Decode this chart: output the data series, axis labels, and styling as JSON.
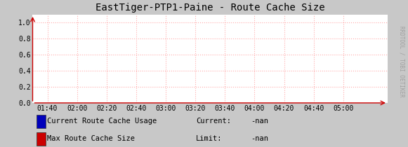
{
  "title": "EastTiger-PTP1-Paine - Route Cache Size",
  "fig_bg_color": "#c8c8c8",
  "plot_bg_color": "#ffffff",
  "grid_color": "#ffaaaa",
  "grid_style": ":",
  "yticks": [
    0.0,
    0.2,
    0.4,
    0.6,
    0.8,
    1.0
  ],
  "ylim": [
    0.0,
    1.1
  ],
  "xtick_labels": [
    "01:40",
    "02:00",
    "02:20",
    "02:40",
    "03:00",
    "03:20",
    "03:40",
    "04:00",
    "04:20",
    "04:40",
    "05:00"
  ],
  "legend": [
    {
      "label": "Current Route Cache Usage",
      "color": "#0000bb",
      "extra": "Current:      -nan"
    },
    {
      "label": "Max Route Cache Size",
      "color": "#cc0000",
      "extra": "Limit:        -nan"
    }
  ],
  "watermark": "RRDTOOL / TOBI OETIKER",
  "title_fontsize": 10,
  "tick_fontsize": 7,
  "legend_fontsize": 7.5,
  "watermark_fontsize": 5.5,
  "arrow_color": "#cc0000"
}
